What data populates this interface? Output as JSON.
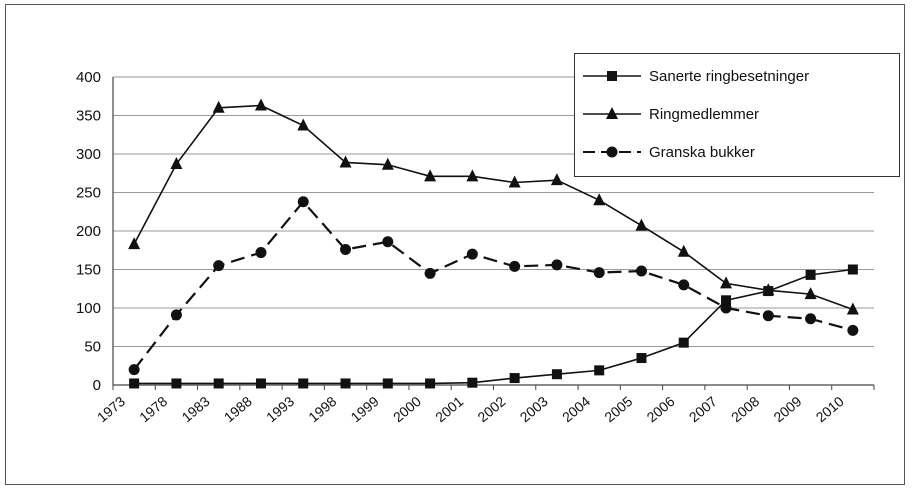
{
  "chart_data": {
    "type": "line",
    "title": "",
    "xlabel": "",
    "ylabel": "",
    "categories": [
      "1973",
      "1978",
      "1983",
      "1988",
      "1993",
      "1998",
      "1999",
      "2000",
      "2001",
      "2002",
      "2003",
      "2004",
      "2005",
      "2006",
      "2007",
      "2008",
      "2009",
      "2010"
    ],
    "ylim": [
      0,
      400
    ],
    "yticks": [
      "0",
      "50",
      "100",
      "150",
      "200",
      "250",
      "300",
      "350",
      "400"
    ],
    "grid": "horizontal",
    "legend_position": "top-right",
    "series": [
      {
        "name": "Sanerte ringbesetninger",
        "marker": "square",
        "dash": "solid",
        "values": [
          2,
          2,
          2,
          2,
          2,
          2,
          2,
          2,
          3,
          9,
          14,
          19,
          35,
          55,
          110,
          122,
          143,
          150
        ]
      },
      {
        "name": "Ringmedlemmer",
        "marker": "triangle",
        "dash": "solid",
        "values": [
          183,
          287,
          360,
          363,
          337,
          289,
          286,
          271,
          271,
          263,
          266,
          240,
          207,
          173,
          132,
          123,
          118,
          98
        ]
      },
      {
        "name": "Granska bukker",
        "marker": "circle",
        "dash": "dashed",
        "values": [
          20,
          91,
          155,
          172,
          238,
          176,
          186,
          145,
          170,
          154,
          156,
          146,
          148,
          130,
          100,
          90,
          86,
          71
        ]
      }
    ],
    "colors": {
      "line": "#111111",
      "grid": "#9a9a9a",
      "axis": "#444444"
    }
  }
}
